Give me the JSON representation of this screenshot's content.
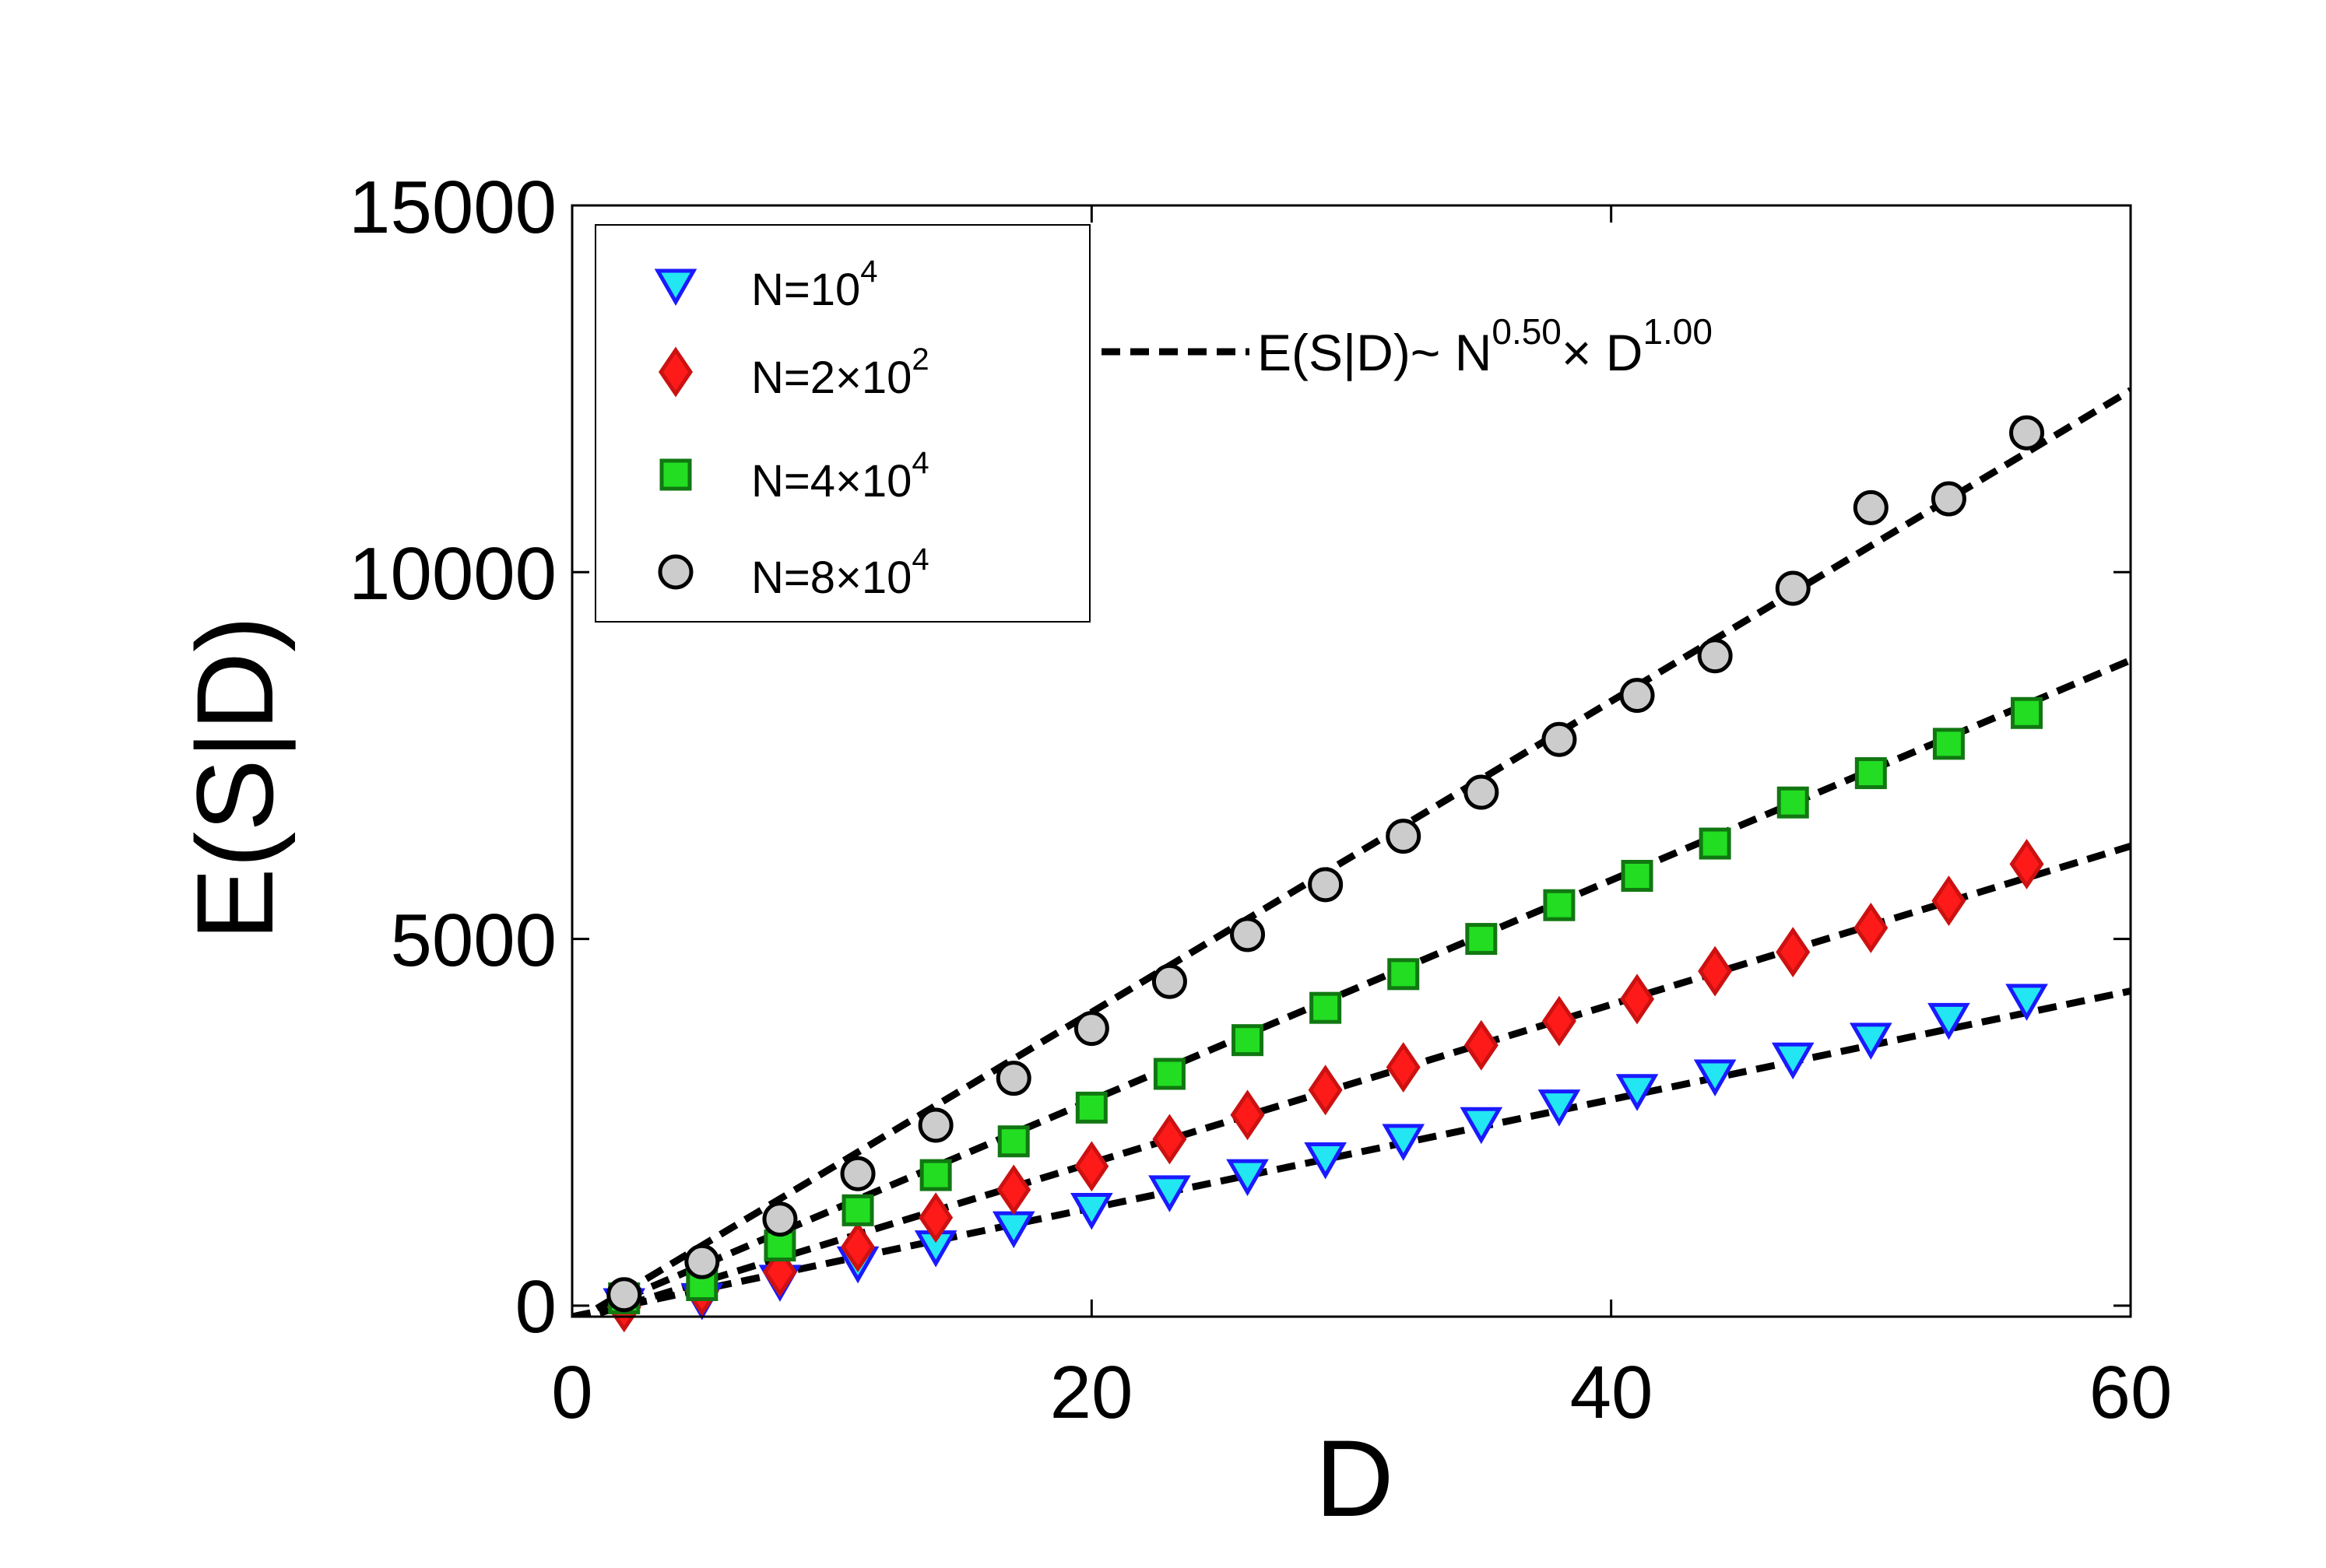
{
  "chart_data": {
    "type": "scatter",
    "xlabel": "D",
    "ylabel": "E(S|D)",
    "xlim": [
      0,
      60
    ],
    "ylim": [
      -150,
      15000
    ],
    "xticks": [
      0,
      20,
      40,
      60
    ],
    "yticks": [
      0,
      5000,
      10000,
      15000
    ],
    "xtick_labels": [
      "0",
      "20",
      "40",
      "60"
    ],
    "ytick_labels": [
      "0",
      "5000",
      "10000",
      "15000"
    ],
    "grid": false,
    "legend_position": "top-left",
    "x": [
      2,
      5,
      8,
      11,
      14,
      17,
      20,
      23,
      26,
      29,
      32,
      35,
      38,
      41,
      44,
      47,
      50,
      53,
      56
    ],
    "series": [
      {
        "name": "N=10^4",
        "legend_base": "N=10",
        "legend_sup": "4",
        "marker": "triangle-down",
        "fill": "#22e6f2",
        "stroke": "#1a1aff",
        "values": [
          30,
          100,
          350,
          600,
          820,
          1080,
          1330,
          1570,
          1790,
          2020,
          2270,
          2500,
          2740,
          2950,
          3150,
          3380,
          3650,
          3920,
          4180
        ]
      },
      {
        "name": "N=2x10^2",
        "legend_base": "N=2×10",
        "legend_sup": "2",
        "marker": "diamond",
        "fill": "#ff1a1a",
        "stroke": "#cc1111",
        "values": [
          -20,
          200,
          460,
          800,
          1200,
          1580,
          1900,
          2270,
          2600,
          2940,
          3250,
          3550,
          3880,
          4180,
          4560,
          4820,
          5150,
          5520,
          6020
        ]
      },
      {
        "name": "N=4x10^4",
        "legend_base": "N=4×10",
        "legend_sup": "4",
        "marker": "square",
        "fill": "#22dd22",
        "stroke": "#117711",
        "values": [
          100,
          280,
          820,
          1300,
          1780,
          2240,
          2700,
          3160,
          3620,
          4060,
          4520,
          5000,
          5460,
          5860,
          6300,
          6860,
          7260,
          7660,
          8080
        ]
      },
      {
        "name": "N=8x10^4",
        "legend_base": "N=8×10",
        "legend_sup": "4",
        "marker": "circle",
        "fill": "#cccccc",
        "stroke": "#000000",
        "values": [
          150,
          600,
          1180,
          1800,
          2460,
          3100,
          3780,
          4420,
          5060,
          5740,
          6400,
          7000,
          7720,
          8320,
          8860,
          9780,
          10880,
          11000,
          11900
        ]
      }
    ],
    "fit_lines": [
      {
        "series": "N=10^4",
        "slope": 74,
        "intercept": -150
      },
      {
        "series": "N=2x10^2",
        "slope": 108,
        "intercept": -215
      },
      {
        "series": "N=4x10^4",
        "slope": 150,
        "intercept": -200
      },
      {
        "series": "N=8x10^4",
        "slope": 212,
        "intercept": -240
      }
    ],
    "fit_label": {
      "prefix": "E(S|D)~ N",
      "exp1": "0.50",
      "mid": "× D",
      "exp2": "1.00"
    },
    "colors": {
      "fit_line": "#000000",
      "axes": "#000000"
    }
  }
}
